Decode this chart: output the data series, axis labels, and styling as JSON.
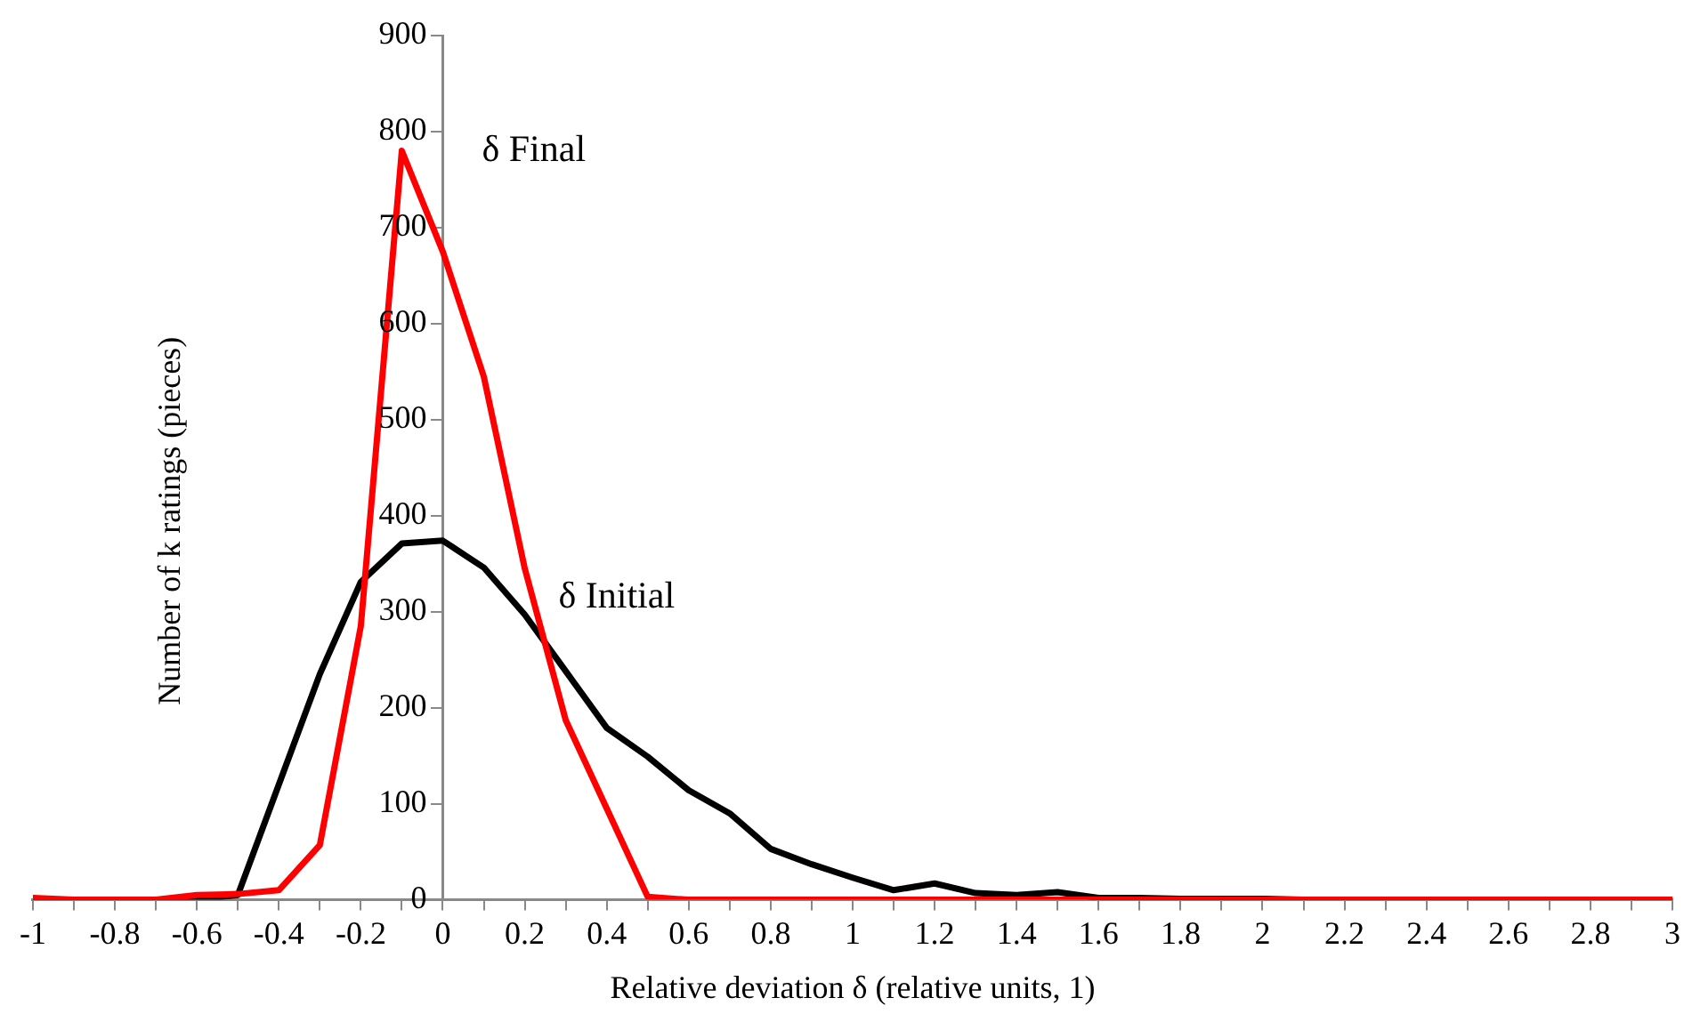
{
  "chart_data": {
    "type": "line",
    "xlabel": "Relative deviation δ (relative units, 1)",
    "ylabel": "Number of k ratings (pieces)",
    "x": [
      -1,
      -0.9,
      -0.8,
      -0.7,
      -0.6,
      -0.5,
      -0.4,
      -0.3,
      -0.2,
      -0.1,
      0,
      0.1,
      0.2,
      0.3,
      0.4,
      0.5,
      0.6,
      0.7,
      0.8,
      0.9,
      1,
      1.1,
      1.2,
      1.3,
      1.4,
      1.5,
      1.6,
      1.7,
      1.8,
      1.9,
      2,
      2.1,
      2.2,
      2.3,
      2.4,
      2.5,
      2.6,
      2.7,
      2.8,
      2.9,
      3
    ],
    "series": [
      {
        "name": "δ Final",
        "color": "#ff0000",
        "values": [
          2,
          0,
          0,
          0,
          5,
          6,
          10,
          57,
          285,
          780,
          675,
          545,
          345,
          187,
          95,
          3,
          0,
          0,
          0,
          0,
          0,
          0,
          0,
          0,
          0,
          0,
          0,
          0,
          0,
          0,
          0,
          0,
          0,
          0,
          0,
          0,
          0,
          0,
          0,
          0,
          0
        ]
      },
      {
        "name": "δ Initial",
        "color": "#000000",
        "values": [
          0,
          0,
          0,
          0,
          0,
          5,
          120,
          235,
          331,
          371,
          374,
          346,
          297,
          238,
          179,
          149,
          114,
          90,
          53,
          37,
          23,
          10,
          17,
          7,
          5,
          8,
          2,
          2,
          1,
          1,
          1,
          0,
          0,
          0,
          0,
          0,
          0,
          0,
          0,
          0,
          0
        ]
      }
    ],
    "xlim": [
      -1,
      3
    ],
    "xticks": [
      -1,
      {
        "value": -0.9,
        "label": null
      },
      -0.8,
      {
        "value": -0.7,
        "label": null
      },
      -0.6,
      {
        "value": -0.5,
        "label": null
      },
      -0.4,
      {
        "value": -0.3,
        "label": null
      },
      -0.2,
      {
        "value": -0.1,
        "label": null
      },
      0,
      {
        "value": 0.1,
        "label": null
      },
      0.2,
      {
        "value": 0.3,
        "label": null
      },
      0.4,
      {
        "value": 0.5,
        "label": null
      },
      0.6,
      {
        "value": 0.7,
        "label": null
      },
      0.8,
      {
        "value": 0.9,
        "label": null
      },
      1,
      {
        "value": 1.1,
        "label": null
      },
      1.2,
      {
        "value": 1.3,
        "label": null
      },
      1.4,
      {
        "value": 1.5,
        "label": null
      },
      1.6,
      {
        "value": 1.7,
        "label": null
      },
      1.8,
      {
        "value": 1.9,
        "label": null
      },
      2,
      {
        "value": 2.1,
        "label": null
      },
      2.2,
      {
        "value": 2.3,
        "label": null
      },
      2.4,
      {
        "value": 2.5,
        "label": null
      },
      2.6,
      {
        "value": 2.7,
        "label": null
      },
      2.8,
      {
        "value": 2.9,
        "label": null
      },
      3
    ],
    "ylim": [
      0,
      900
    ],
    "yticks": [
      0,
      100,
      200,
      300,
      400,
      500,
      600,
      700,
      800,
      900
    ],
    "grid": false,
    "legend": false,
    "marker": "none",
    "line_style": "solid"
  }
}
